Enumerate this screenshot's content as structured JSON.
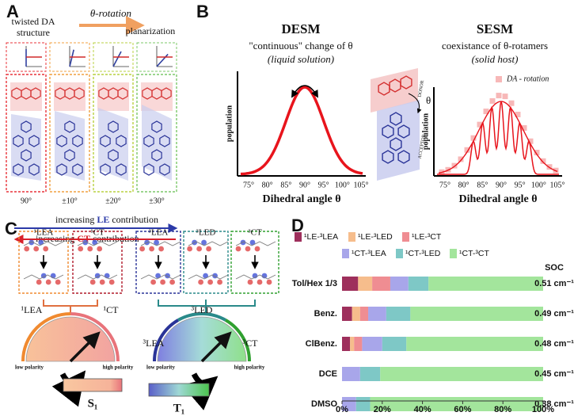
{
  "panels": {
    "a": {
      "label": "A",
      "structure": [
        "twisted DA",
        "structure"
      ],
      "rotation": "θ-rotation",
      "planar": "planarization",
      "angles": [
        "90°",
        "±10°",
        "±20°",
        "±30°"
      ],
      "le": [
        "increasing",
        "LE",
        "contribution"
      ],
      "ct": [
        "increasing",
        "CT",
        "contribution"
      ]
    },
    "b": {
      "label": "B",
      "desm": {
        "title": "DESM",
        "subtitle": "\"continuous\" change of θ",
        "note": "(liquid solution)"
      },
      "sesm": {
        "title": "SESM",
        "subtitle": "coexistance of θ-rotamers",
        "note": "(solid host)",
        "legend": "DA - rotation"
      },
      "x_tick_labels": [
        "75°",
        "80°",
        "85°",
        "90°",
        "95°",
        "100°",
        "105°"
      ],
      "y_label": "population",
      "x_label": "Dihedral angle θ",
      "donor": "DONOR",
      "acceptor": "ACCEPTOR",
      "theta": "θ"
    },
    "c": {
      "label": "C",
      "singlet_states": [
        "¹LEA",
        "¹CT"
      ],
      "triplet_states": [
        "³LEA",
        "³LED",
        "³CT"
      ],
      "low": "low polarity",
      "high": "high polarity",
      "s1": "S₁",
      "t1": "T₁"
    }
  },
  "chart_data": {
    "type": "stacked_bar_horizontal",
    "label": "D",
    "categories": [
      "Tol/Hex 1/3",
      "Benz.",
      "ClBenz.",
      "DCE",
      "DMSO"
    ],
    "series": [
      {
        "name": "¹LE-³LEA",
        "color": "#9e2f5c",
        "values": [
          8,
          5,
          4,
          0,
          0
        ]
      },
      {
        "name": "¹LE-³LED",
        "color": "#f6bd8c",
        "values": [
          7,
          4,
          2,
          0,
          0
        ]
      },
      {
        "name": "¹LE-³CT",
        "color": "#ef8d92",
        "values": [
          9,
          4,
          4,
          0,
          0
        ]
      },
      {
        "name": "¹CT-³LEA",
        "color": "#a8a6ea",
        "values": [
          9,
          9,
          10,
          9,
          7
        ]
      },
      {
        "name": "¹CT-³LED",
        "color": "#7ec8c6",
        "values": [
          10,
          12,
          12,
          10,
          7
        ]
      },
      {
        "name": "¹CT-³CT",
        "color": "#a3e59c",
        "values": [
          57,
          66,
          68,
          81,
          86
        ]
      }
    ],
    "soc_header": "SOC",
    "soc_labels": [
      "0.51 cm⁻¹",
      "0.49 cm⁻¹",
      "0.48 cm⁻¹",
      "0.45 cm⁻¹",
      "0.38 cm⁻¹"
    ],
    "xlim": [
      0,
      100
    ],
    "xticks": [
      {
        "value": 0,
        "label": "0%"
      },
      {
        "value": 20,
        "label": "20%"
      },
      {
        "value": 40,
        "label": "40%"
      },
      {
        "value": 60,
        "label": "60%"
      },
      {
        "value": 80,
        "label": "80%"
      },
      {
        "value": 100,
        "label": "100%"
      }
    ]
  }
}
